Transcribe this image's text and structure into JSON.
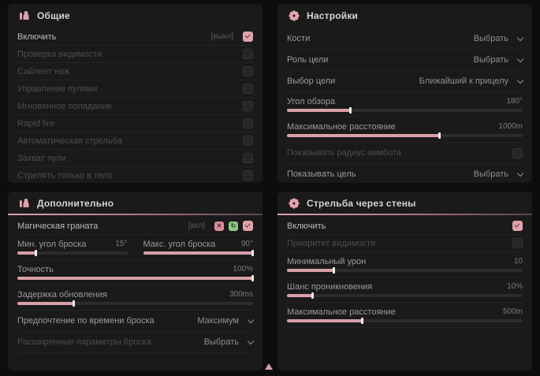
{
  "theme": {
    "accent": "#e2a2ac",
    "green": "#8fc98a",
    "panel_bg": "#1a1a1a",
    "page_bg": "#0d0d0d"
  },
  "panels": {
    "general": {
      "title": "Общие",
      "rows": [
        {
          "label": "Включить",
          "hint": "[выкл]",
          "checked": true
        },
        {
          "label": "Проверка видимости",
          "checked": false
        },
        {
          "label": "Сайлент нож",
          "checked": false
        },
        {
          "label": "Управление пулями",
          "checked": false
        },
        {
          "label": "Мгновенное попадание",
          "checked": false
        },
        {
          "label": "Rapid fire",
          "checked": false
        },
        {
          "label": "Автоматическая стрельба",
          "checked": false
        },
        {
          "label": "Захват пули",
          "checked": false
        },
        {
          "label": "Стрелять только в тело",
          "checked": false
        }
      ]
    },
    "settings": {
      "title": "Настройки",
      "rows": [
        {
          "label": "Кости",
          "value": "Выбрать"
        },
        {
          "label": "Роль цели",
          "value": "Выбрать"
        },
        {
          "label": "Выбор цели",
          "value": "Ближайший к прицелу"
        },
        {
          "label": "Угол обзора",
          "value": "180°",
          "fill": 27
        },
        {
          "label": "Максимальное расстояние",
          "value": "1000m",
          "fill": 65
        },
        {
          "label": "Показывать радиус аимбота",
          "checked": false
        },
        {
          "label": "Показывать цель",
          "value": "Выбрать"
        }
      ]
    },
    "advanced": {
      "title": "Дополнительно",
      "rows": [
        {
          "label": "Магическая граната",
          "hint": "[вкл]",
          "checked": true,
          "badges": [
            {
              "name": "cancel-badge",
              "glyph": "✕"
            },
            {
              "name": "refresh-badge",
              "glyph": "↻"
            }
          ]
        },
        {
          "label": "Мин. угол броска",
          "value": "15°",
          "fill": 17
        },
        {
          "label": "Макс. угол броска",
          "value": "90°",
          "fill": 100
        },
        {
          "label": "Точность",
          "value": "100%",
          "fill": 100
        },
        {
          "label": "Задержка обновления",
          "value": "300ms",
          "fill": 24
        },
        {
          "label": "Предпочтение по времени броска",
          "value": "Максимум"
        },
        {
          "label": "Расширенные параметры броска",
          "value": "Выбрать"
        }
      ]
    },
    "wallbang": {
      "title": "Стрельба через стены",
      "rows": [
        {
          "label": "Включить",
          "checked": true
        },
        {
          "label": "Приоритет видимости",
          "checked": false
        },
        {
          "label": "Минимальный урон",
          "value": "10",
          "fill": 20
        },
        {
          "label": "Шанс проникновения",
          "value": "10%",
          "fill": 11
        },
        {
          "label": "Максимальное расстояние",
          "value": "500m",
          "fill": 32
        }
      ]
    }
  }
}
